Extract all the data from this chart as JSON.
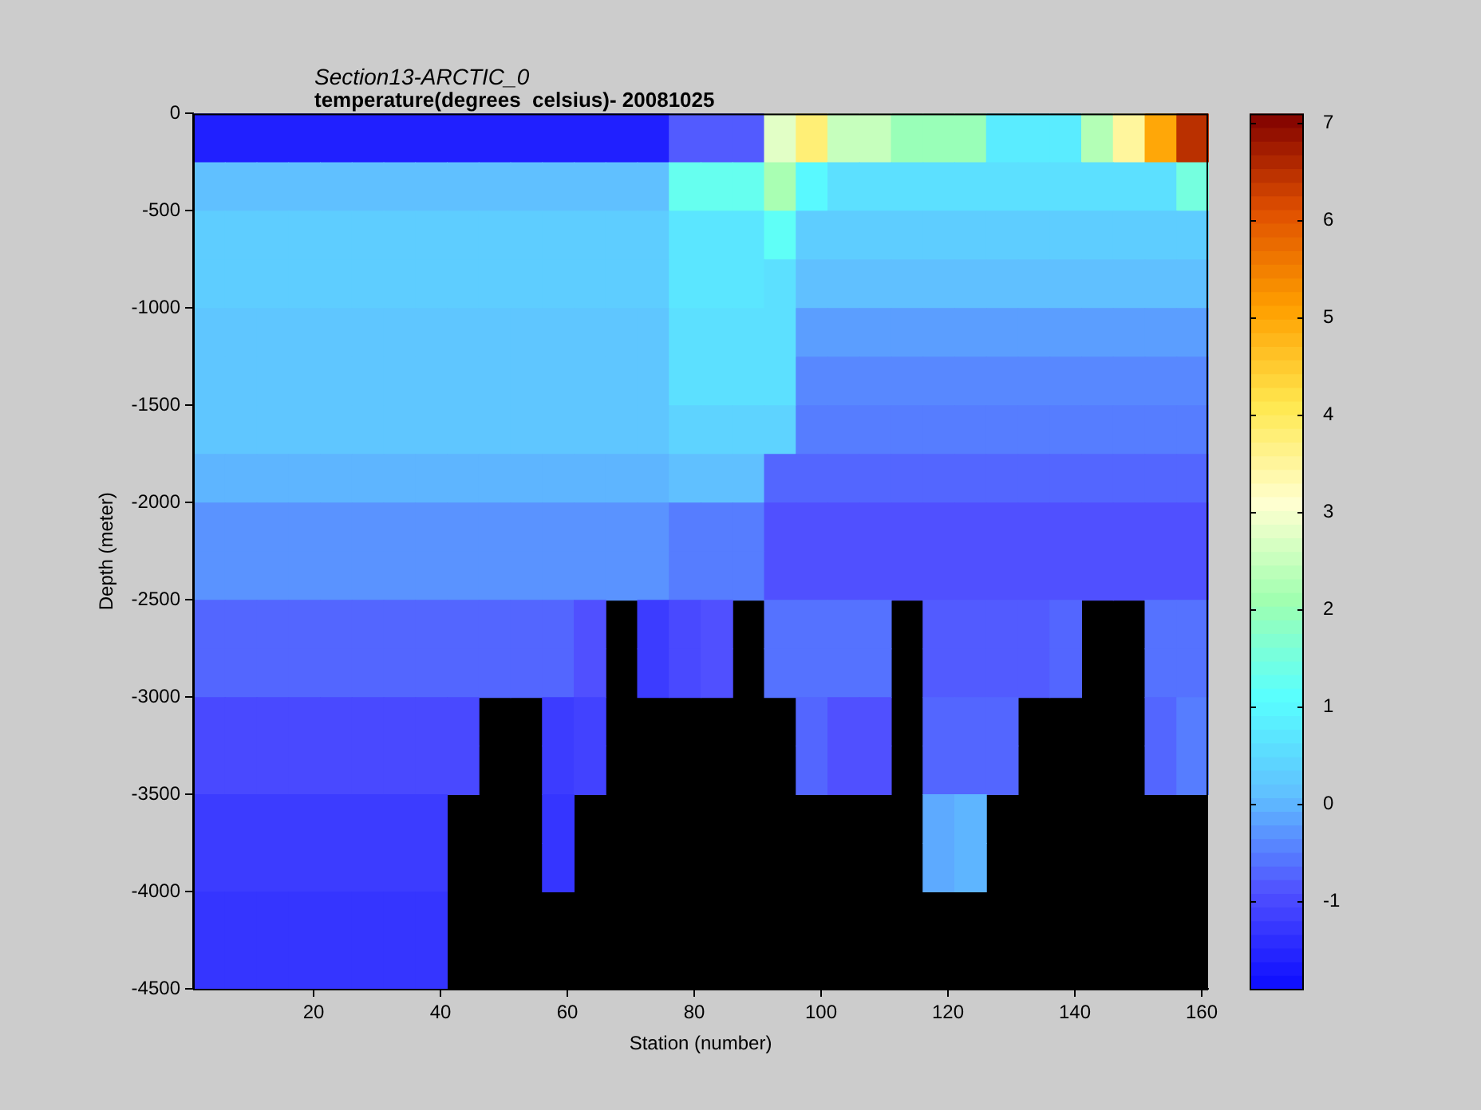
{
  "chart_data": {
    "type": "heatmap",
    "title": "Section13-ARCTIC_0",
    "subtitle": "temperature(degrees  celsius)- 20081025",
    "xlabel": "Station (number)",
    "ylabel": "Depth (meter)",
    "x": [
      3.5,
      8.5,
      13.5,
      18.5,
      23.5,
      28.5,
      33.5,
      38.5,
      43.5,
      48.5,
      53.5,
      58.5,
      63.5,
      68.5,
      73.5,
      78.5,
      83.5,
      88.5,
      93.5,
      98.5,
      103.5,
      108.5,
      113.5,
      118.5,
      123.5,
      128.5,
      133.5,
      138.5,
      143.5,
      148.5,
      153.5,
      158.5
    ],
    "y": [
      -125,
      -375,
      -625,
      -875,
      -1125,
      -1375,
      -1625,
      -1875,
      -2125,
      -2375,
      -2625,
      -2875,
      -3125,
      -3375,
      -3625,
      -3875,
      -4125,
      -4375
    ],
    "xlim": [
      1,
      161
    ],
    "xticks": [
      20,
      40,
      60,
      80,
      100,
      120,
      140,
      160
    ],
    "ylim": [
      -4500,
      0
    ],
    "yticks": [
      0,
      -500,
      -1000,
      -1500,
      -2000,
      -2500,
      -3000,
      -3500,
      -4000,
      -4500
    ],
    "clim": [
      -1.9,
      7.1
    ],
    "cticks": [
      -1,
      0,
      1,
      2,
      3,
      4,
      5,
      6,
      7
    ],
    "colors": [
      "#0c0cff",
      "#5050ff",
      "#60c0ff",
      "#58ffff",
      "#a0ffb0",
      "#ffffd0",
      "#ffe850",
      "#ffa000",
      "#e05000",
      "#800000"
    ],
    "cells": [
      [
        -1.6,
        -1.6,
        -1.6,
        -1.6,
        -1.6,
        -1.6,
        -1.6,
        -1.6,
        -1.6,
        -1.6,
        -1.6,
        -1.6,
        -1.6,
        -1.6,
        -1.6,
        -0.8,
        -0.8,
        -0.8,
        2.8,
        3.8,
        2.5,
        2.5,
        2.0,
        2.0,
        2.0,
        0.8,
        0.8,
        0.8,
        2.3,
        3.5,
        5.0,
        6.5
      ],
      [
        0.1,
        0.1,
        0.1,
        0.1,
        0.1,
        0.1,
        0.1,
        0.1,
        0.1,
        0.1,
        0.1,
        0.1,
        0.1,
        0.1,
        0.1,
        1.3,
        1.3,
        1.3,
        2.2,
        1.0,
        0.6,
        0.6,
        0.6,
        0.6,
        0.6,
        0.6,
        0.6,
        0.6,
        0.6,
        0.6,
        0.6,
        1.5
      ],
      [
        0.3,
        0.3,
        0.3,
        0.3,
        0.3,
        0.3,
        0.3,
        0.3,
        0.3,
        0.3,
        0.3,
        0.3,
        0.3,
        0.3,
        0.3,
        0.7,
        0.7,
        0.7,
        1.2,
        0.3,
        0.3,
        0.3,
        0.3,
        0.3,
        0.3,
        0.3,
        0.3,
        0.3,
        0.3,
        0.3,
        0.3,
        0.3
      ],
      [
        0.3,
        0.3,
        0.3,
        0.3,
        0.3,
        0.3,
        0.3,
        0.3,
        0.3,
        0.3,
        0.3,
        0.3,
        0.3,
        0.3,
        0.3,
        0.7,
        0.7,
        0.7,
        0.6,
        0.1,
        0.1,
        0.1,
        0.1,
        0.1,
        0.1,
        0.1,
        0.1,
        0.1,
        0.1,
        0.1,
        0.1,
        0.1
      ],
      [
        0.2,
        0.2,
        0.2,
        0.2,
        0.2,
        0.2,
        0.2,
        0.2,
        0.2,
        0.2,
        0.2,
        0.2,
        0.2,
        0.2,
        0.2,
        0.6,
        0.6,
        0.6,
        0.6,
        -0.2,
        -0.2,
        -0.2,
        -0.2,
        -0.2,
        -0.2,
        -0.2,
        -0.2,
        -0.2,
        -0.2,
        -0.2,
        -0.2,
        -0.2
      ],
      [
        0.2,
        0.2,
        0.2,
        0.2,
        0.2,
        0.2,
        0.2,
        0.2,
        0.2,
        0.2,
        0.2,
        0.2,
        0.2,
        0.2,
        0.2,
        0.6,
        0.6,
        0.6,
        0.6,
        -0.4,
        -0.4,
        -0.4,
        -0.4,
        -0.4,
        -0.4,
        -0.4,
        -0.4,
        -0.4,
        -0.4,
        -0.4,
        -0.4,
        -0.4
      ],
      [
        0.2,
        0.2,
        0.2,
        0.2,
        0.2,
        0.2,
        0.2,
        0.2,
        0.2,
        0.2,
        0.2,
        0.2,
        0.2,
        0.2,
        0.2,
        0.4,
        0.4,
        0.4,
        0.4,
        -0.5,
        -0.5,
        -0.5,
        -0.5,
        -0.5,
        -0.5,
        -0.5,
        -0.5,
        -0.5,
        -0.5,
        -0.5,
        -0.5,
        -0.5
      ],
      [
        0.0,
        0.0,
        0.0,
        0.0,
        0.0,
        0.0,
        0.0,
        0.0,
        0.0,
        0.0,
        0.0,
        0.0,
        0.0,
        0.0,
        0.0,
        0.1,
        0.1,
        0.1,
        -0.7,
        -0.7,
        -0.7,
        -0.7,
        -0.7,
        -0.7,
        -0.7,
        -0.7,
        -0.7,
        -0.7,
        -0.7,
        -0.7,
        -0.7,
        -0.7
      ],
      [
        -0.3,
        -0.3,
        -0.3,
        -0.3,
        -0.3,
        -0.3,
        -0.3,
        -0.3,
        -0.3,
        -0.3,
        -0.3,
        -0.3,
        -0.3,
        -0.3,
        -0.3,
        -0.5,
        -0.5,
        -0.5,
        -0.9,
        -0.9,
        -0.9,
        -0.9,
        -0.9,
        -0.9,
        -0.9,
        -0.9,
        -0.9,
        -0.9,
        -0.9,
        -0.9,
        -0.9,
        -0.9
      ],
      [
        -0.3,
        -0.3,
        -0.3,
        -0.3,
        -0.3,
        -0.3,
        -0.3,
        -0.3,
        -0.3,
        -0.3,
        -0.3,
        -0.3,
        -0.3,
        -0.3,
        -0.3,
        -0.5,
        -0.5,
        -0.5,
        -0.9,
        -0.9,
        -0.9,
        -0.9,
        -0.9,
        -0.9,
        -0.9,
        -0.9,
        -0.9,
        -0.9,
        -0.9,
        -0.9,
        -0.9,
        -0.9
      ],
      [
        -0.7,
        -0.7,
        -0.7,
        -0.7,
        -0.7,
        -0.7,
        -0.7,
        -0.7,
        -0.7,
        -0.7,
        -0.7,
        -0.7,
        -0.9,
        null,
        -1.2,
        -1.0,
        -0.9,
        null,
        -0.6,
        -0.6,
        -0.6,
        -0.6,
        null,
        -0.8,
        -0.8,
        -0.8,
        -0.8,
        -0.7,
        null,
        null,
        -0.6,
        -0.6
      ],
      [
        -0.7,
        -0.7,
        -0.7,
        -0.7,
        -0.7,
        -0.7,
        -0.7,
        -0.7,
        -0.7,
        -0.7,
        -0.7,
        -0.7,
        -0.9,
        null,
        -1.2,
        -1.0,
        -0.9,
        null,
        -0.6,
        -0.6,
        -0.6,
        -0.6,
        null,
        -0.8,
        -0.8,
        -0.8,
        -0.8,
        -0.7,
        null,
        null,
        -0.6,
        -0.6
      ],
      [
        -1.0,
        -1.0,
        -1.0,
        -1.0,
        -1.0,
        -1.0,
        -1.0,
        -1.0,
        -1.0,
        null,
        null,
        -1.2,
        -1.1,
        null,
        null,
        null,
        null,
        null,
        null,
        -0.7,
        -0.9,
        -0.9,
        null,
        -0.7,
        -0.7,
        -0.7,
        null,
        null,
        null,
        null,
        -0.7,
        -0.5
      ],
      [
        -1.0,
        -1.0,
        -1.0,
        -1.0,
        -1.0,
        -1.0,
        -1.0,
        -1.0,
        -1.0,
        null,
        null,
        -1.2,
        -1.1,
        null,
        null,
        null,
        null,
        null,
        null,
        -0.7,
        -0.9,
        -0.9,
        null,
        -0.7,
        -0.7,
        -0.7,
        null,
        null,
        null,
        null,
        -0.7,
        -0.5
      ],
      [
        -1.2,
        -1.2,
        -1.2,
        -1.2,
        -1.2,
        -1.2,
        -1.2,
        -1.2,
        null,
        null,
        null,
        -1.3,
        null,
        null,
        null,
        null,
        null,
        null,
        null,
        null,
        null,
        null,
        null,
        -0.1,
        0.0,
        null,
        null,
        null,
        null,
        null,
        null,
        null
      ],
      [
        -1.2,
        -1.2,
        -1.2,
        -1.2,
        -1.2,
        -1.2,
        -1.2,
        -1.2,
        null,
        null,
        null,
        -1.3,
        null,
        null,
        null,
        null,
        null,
        null,
        null,
        null,
        null,
        null,
        null,
        -0.1,
        0.0,
        null,
        null,
        null,
        null,
        null,
        null,
        null
      ],
      [
        -1.3,
        -1.3,
        -1.3,
        -1.3,
        -1.3,
        -1.3,
        -1.3,
        -1.3,
        null,
        null,
        null,
        null,
        null,
        null,
        null,
        null,
        null,
        null,
        null,
        null,
        null,
        null,
        null,
        null,
        null,
        null,
        null,
        null,
        null,
        null,
        null,
        null
      ],
      [
        -1.3,
        -1.3,
        -1.3,
        -1.3,
        -1.3,
        -1.3,
        -1.3,
        -1.3,
        null,
        null,
        null,
        null,
        null,
        null,
        null,
        null,
        null,
        null,
        null,
        null,
        null,
        null,
        null,
        null,
        null,
        null,
        null,
        null,
        null,
        null,
        null,
        null
      ]
    ]
  }
}
